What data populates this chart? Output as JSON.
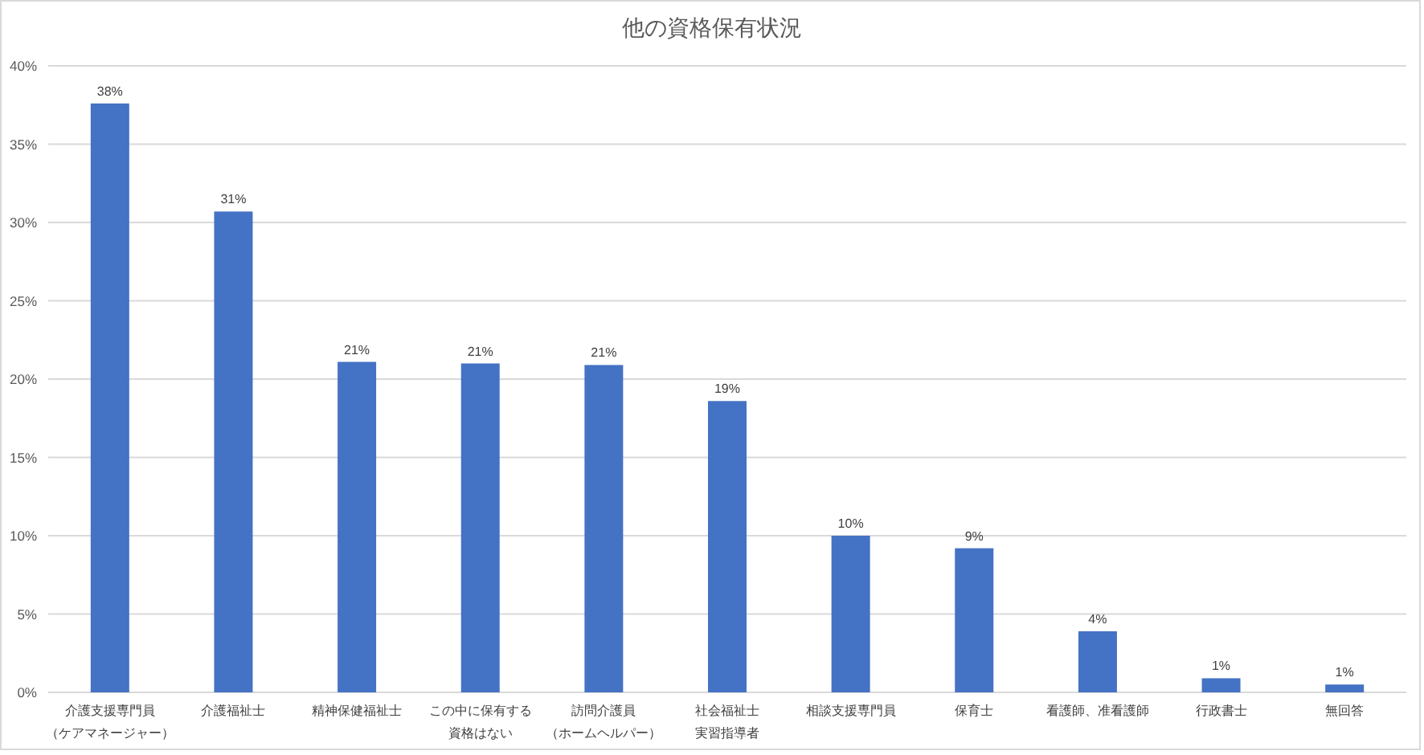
{
  "chart_data": {
    "type": "bar",
    "title": "他の資格保有状況",
    "categories": [
      "介護支援専門員（ケアマネージャー）",
      "介護福祉士",
      "精神保健福祉士",
      "この中に保有する資格はない",
      "訪問介護員（ホームヘルパー）",
      "社会福祉士実習指導者",
      "相談支援専門員",
      "保育士",
      "看護師、准看護師",
      "行政書士",
      "無回答"
    ],
    "values": [
      37.6,
      30.7,
      21.1,
      21.0,
      20.9,
      18.6,
      10.0,
      9.2,
      3.9,
      0.9,
      0.5
    ],
    "value_labels": [
      "38%",
      "31%",
      "21%",
      "21%",
      "21%",
      "19%",
      "10%",
      "9%",
      "4%",
      "1%",
      "1%"
    ],
    "color": "#4472c4",
    "ylim": [
      0,
      40
    ],
    "yticks": [
      {
        "value": 0,
        "label": "0%"
      },
      {
        "value": 5,
        "label": "5%"
      },
      {
        "value": 10,
        "label": "10%"
      },
      {
        "value": 15,
        "label": "15%"
      },
      {
        "value": 20,
        "label": "20%"
      },
      {
        "value": 25,
        "label": "25%"
      },
      {
        "value": 30,
        "label": "30%"
      },
      {
        "value": 35,
        "label": "35%"
      },
      {
        "value": 40,
        "label": "40%"
      }
    ],
    "grid": "y"
  }
}
